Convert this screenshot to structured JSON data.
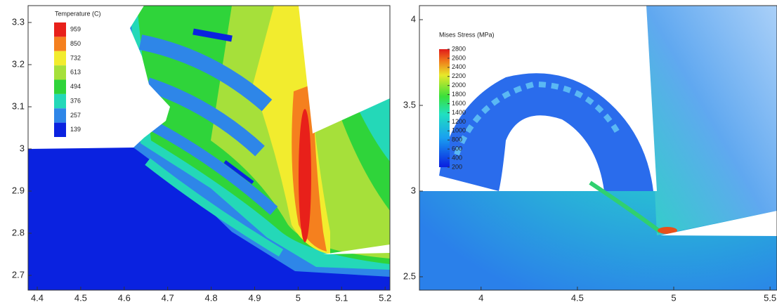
{
  "chart_data": [
    {
      "type": "contour",
      "xlim": [
        4.379,
        5.211
      ],
      "ylim": [
        2.665,
        3.34
      ],
      "xticks": [
        4.4,
        4.5,
        4.6,
        4.7,
        4.8,
        4.9,
        5,
        5.1,
        5.2
      ],
      "yticks": [
        2.7,
        2.8,
        2.9,
        3,
        3.1,
        3.2,
        3.3
      ],
      "colorbar": {
        "title": "Temperature (C)",
        "levels": [
          959,
          850,
          732,
          613,
          494,
          376,
          257,
          139
        ],
        "colors": [
          "#e8201a",
          "#f5801e",
          "#f2ec2e",
          "#a6e03a",
          "#2fd43a",
          "#24d8b8",
          "#2e86e8",
          "#0a22e0"
        ]
      }
    },
    {
      "type": "contour",
      "xlim": [
        3.68,
        5.536
      ],
      "ylim": [
        2.422,
        4.082
      ],
      "xticks": [
        4,
        4.5,
        5,
        5.5
      ],
      "yticks": [
        2.5,
        3,
        3.5,
        4
      ],
      "colorbar": {
        "title": "Mises Stress (MPa)",
        "clim": [
          200,
          2800
        ],
        "ticks": [
          2800,
          2600,
          2400,
          2200,
          2000,
          1800,
          1600,
          1400,
          1200,
          1000,
          800,
          600,
          400,
          200
        ]
      }
    }
  ]
}
